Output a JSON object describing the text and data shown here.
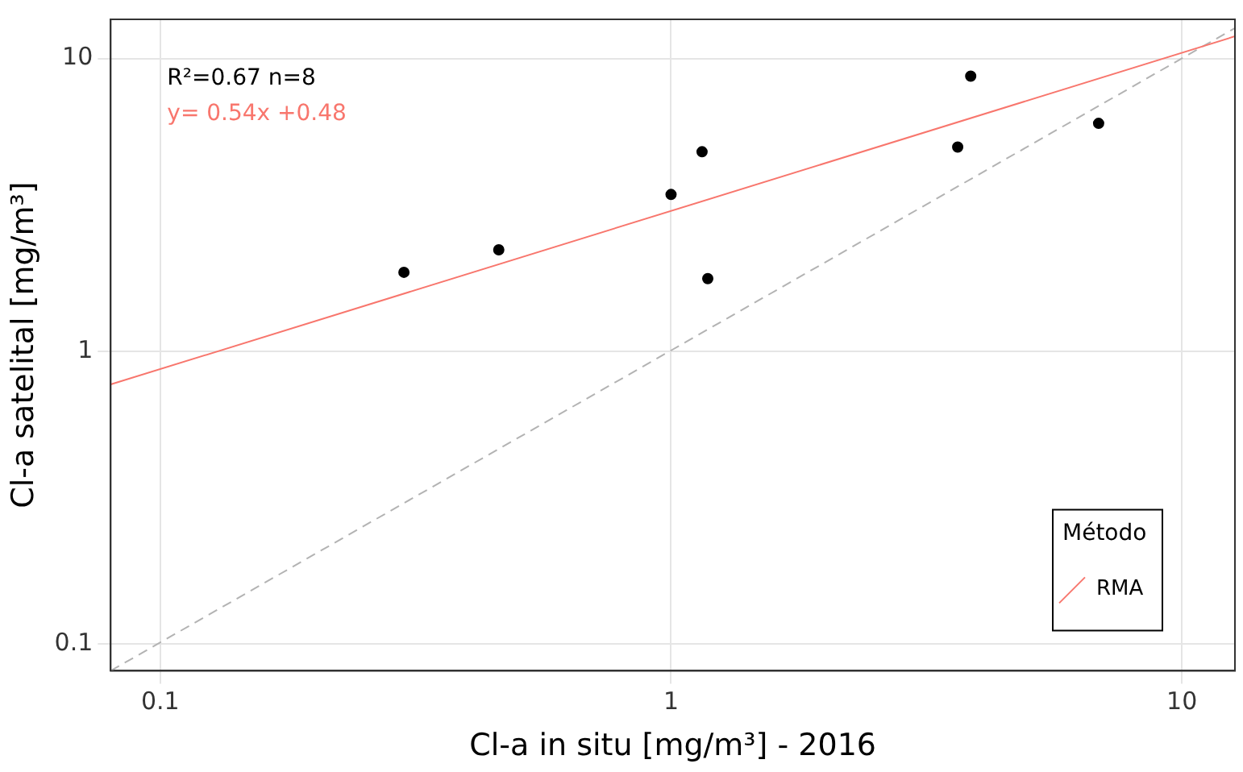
{
  "chart_data": {
    "type": "scatter",
    "xlabel": "Cl-a in situ [mg/m³] - 2016",
    "ylabel": "Cl-a satelital [mg/m³]",
    "log": "xy",
    "grid": true,
    "legend": "bottom right",
    "legend_title": "Método",
    "marker": "circle",
    "xlim": [
      0.08,
      12.7
    ],
    "ylim": [
      0.081,
      13.6
    ],
    "xticks": [
      0.1,
      1,
      10
    ],
    "yticks": [
      0.1,
      1,
      10
    ],
    "annotations": [
      "R²=0.67 n=8",
      "y= 0.54x +0.48"
    ],
    "series": [
      {
        "type": "scatter",
        "color": "#000000",
        "x": [
          0.3,
          0.46,
          1.0,
          1.15,
          1.18,
          3.64,
          3.86,
          6.87
        ],
        "values": [
          1.86,
          2.22,
          3.43,
          4.8,
          1.77,
          4.98,
          8.7,
          6.0
        ]
      },
      {
        "type": "line",
        "name": "RMA",
        "color": "#f8766d",
        "line_style": "solid",
        "marker": "none",
        "x": [
          0.08,
          12.7
        ],
        "values": [
          0.77,
          11.9
        ]
      },
      {
        "type": "line",
        "color": "#b3b3b3",
        "line_style": "dashed",
        "marker": "none",
        "x": [
          0.08,
          12.7
        ],
        "values": [
          0.081,
          12.7
        ]
      }
    ]
  }
}
